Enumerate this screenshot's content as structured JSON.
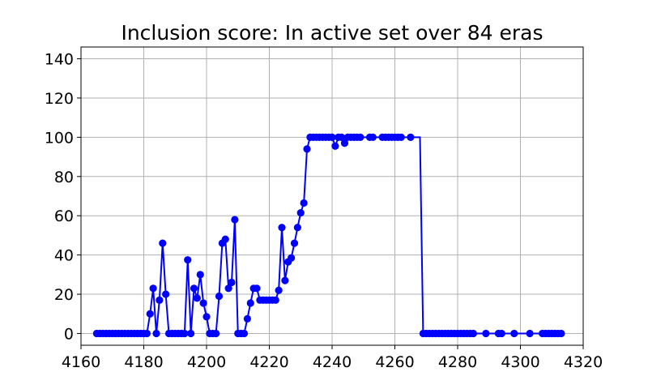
{
  "chart_data": {
    "type": "line",
    "title": "Inclusion score: In active set over 84 eras",
    "xlabel": "",
    "ylabel": "",
    "xlim": [
      4160,
      4320
    ],
    "ylim": [
      -6,
      146
    ],
    "x_ticks": [
      4160,
      4180,
      4200,
      4220,
      4240,
      4260,
      4280,
      4300,
      4320
    ],
    "y_ticks": [
      0,
      20,
      40,
      60,
      80,
      100,
      120,
      140
    ],
    "grid": true,
    "line_color": "#0000ff",
    "marker": "circle",
    "series": [
      {
        "points": [
          [
            4165,
            0
          ],
          [
            4166,
            0
          ],
          [
            4167,
            0
          ],
          [
            4168,
            0
          ],
          [
            4169,
            0
          ],
          [
            4170,
            0
          ],
          [
            4171,
            0
          ],
          [
            4172,
            0
          ],
          [
            4173,
            0
          ],
          [
            4174,
            0
          ],
          [
            4175,
            0
          ],
          [
            4176,
            0
          ],
          [
            4177,
            0
          ],
          [
            4178,
            0
          ],
          [
            4179,
            0
          ],
          [
            4180,
            0
          ],
          [
            4181,
            0
          ],
          [
            4182,
            10
          ],
          [
            4183,
            23
          ],
          [
            4184,
            0
          ],
          [
            4185,
            17
          ],
          [
            4186,
            46
          ],
          [
            4187,
            20
          ],
          [
            4188,
            0
          ],
          [
            4189,
            0
          ],
          [
            4190,
            0
          ],
          [
            4191,
            0
          ],
          [
            4192,
            0
          ],
          [
            4193,
            0
          ],
          [
            4194,
            37.5
          ],
          [
            4195,
            0
          ],
          [
            4196,
            23
          ],
          [
            4197,
            18
          ],
          [
            4198,
            30
          ],
          [
            4199,
            15.5
          ],
          [
            4200,
            8.5
          ],
          [
            4201,
            0
          ],
          [
            4202,
            0
          ],
          [
            4203,
            0
          ],
          [
            4204,
            19
          ],
          [
            4205,
            46
          ],
          [
            4206,
            48
          ],
          [
            4207,
            23
          ],
          [
            4208,
            26
          ],
          [
            4209,
            58
          ],
          [
            4210,
            0
          ],
          [
            4211,
            0
          ],
          [
            4212,
            0
          ],
          [
            4213,
            7.5
          ],
          [
            4214,
            15.5
          ],
          [
            4215,
            23
          ],
          [
            4216,
            23
          ],
          [
            4217,
            17
          ],
          [
            4218,
            17
          ],
          [
            4219,
            17
          ],
          [
            4220,
            17
          ],
          [
            4221,
            17
          ],
          [
            4222,
            17
          ],
          [
            4223,
            22
          ],
          [
            4224,
            54
          ],
          [
            4225,
            27
          ],
          [
            4226,
            36.5
          ],
          [
            4227,
            38.5
          ],
          [
            4228,
            46
          ],
          [
            4229,
            54
          ],
          [
            4230,
            61.5
          ],
          [
            4231,
            66.5
          ],
          [
            4232,
            94
          ],
          [
            4233,
            100
          ],
          [
            4234,
            100
          ],
          [
            4235,
            100
          ],
          [
            4236,
            100
          ],
          [
            4237,
            100
          ],
          [
            4238,
            100
          ],
          [
            4239,
            100
          ],
          [
            4240,
            100
          ],
          [
            4241,
            95.5
          ],
          [
            4242,
            100
          ],
          [
            4243,
            100
          ],
          [
            4244,
            97
          ],
          [
            4245,
            100
          ],
          [
            4246,
            100
          ],
          [
            4247,
            100
          ],
          [
            4248,
            100
          ],
          [
            4249,
            100
          ],
          [
            4252,
            100
          ],
          [
            4253,
            100
          ],
          [
            4256,
            100
          ],
          [
            4257,
            100
          ],
          [
            4258,
            100
          ],
          [
            4259,
            100
          ],
          [
            4260,
            100
          ],
          [
            4261,
            100
          ],
          [
            4262,
            100
          ],
          [
            4265,
            100
          ],
          [
            4268,
            100
          ],
          [
            4269,
            0
          ],
          [
            4270,
            0
          ],
          [
            4271,
            0
          ],
          [
            4272,
            0
          ],
          [
            4273,
            0
          ],
          [
            4274,
            0
          ],
          [
            4275,
            0
          ],
          [
            4276,
            0
          ],
          [
            4277,
            0
          ],
          [
            4278,
            0
          ],
          [
            4279,
            0
          ],
          [
            4280,
            0
          ],
          [
            4281,
            0
          ],
          [
            4282,
            0
          ],
          [
            4283,
            0
          ],
          [
            4284,
            0
          ],
          [
            4285,
            0
          ],
          [
            4289,
            0
          ],
          [
            4293,
            0
          ],
          [
            4294,
            0
          ],
          [
            4298,
            0
          ],
          [
            4303,
            0
          ],
          [
            4307,
            0
          ],
          [
            4308,
            0
          ],
          [
            4309,
            0
          ],
          [
            4310,
            0
          ],
          [
            4311,
            0
          ],
          [
            4312,
            0
          ],
          [
            4313,
            0
          ]
        ],
        "marker_indices_skip": [
          95,
          125
        ]
      }
    ]
  }
}
